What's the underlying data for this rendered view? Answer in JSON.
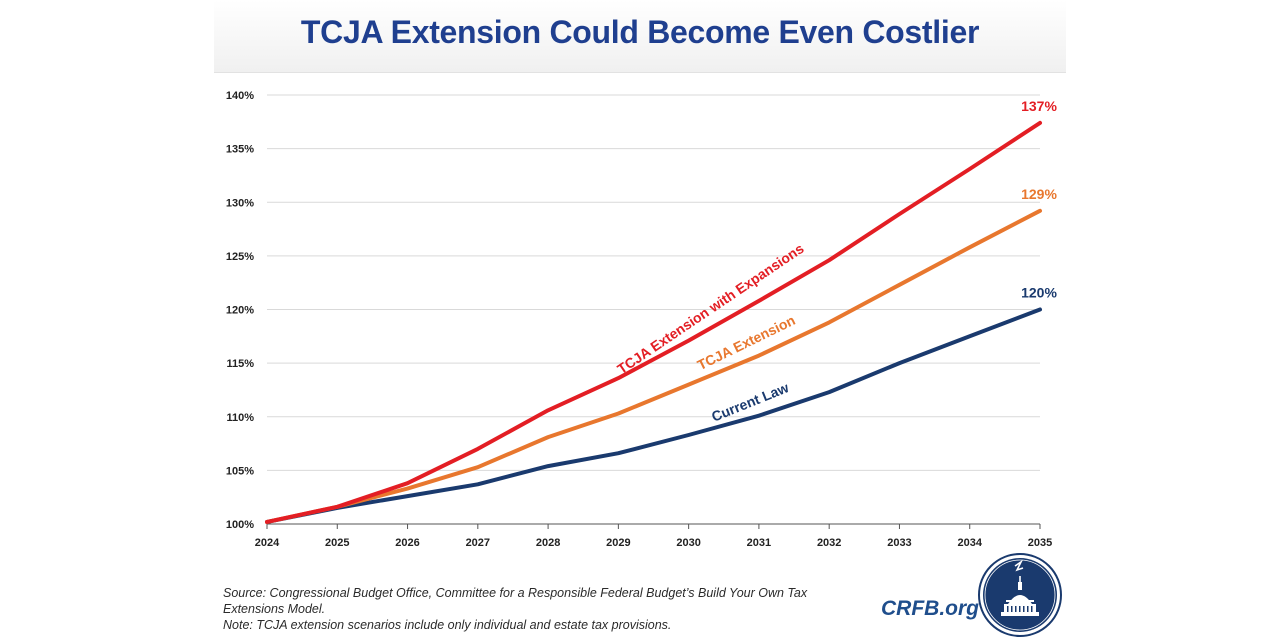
{
  "chart_data": {
    "type": "line",
    "title": "TCJA Extension Could Become Even Costlier",
    "xlabel": "",
    "ylabel": "",
    "x": [
      2024,
      2025,
      2026,
      2027,
      2028,
      2029,
      2030,
      2031,
      2032,
      2033,
      2034,
      2035
    ],
    "x_tick_labels": [
      "2024",
      "2025",
      "2026",
      "2027",
      "2028",
      "2029",
      "2030",
      "2031",
      "2032",
      "2033",
      "2034",
      "2035"
    ],
    "ylim": [
      100,
      140
    ],
    "y_ticks": [
      100,
      105,
      110,
      115,
      120,
      125,
      130,
      135,
      140
    ],
    "y_tick_labels": [
      "100%",
      "105%",
      "110%",
      "115%",
      "120%",
      "125%",
      "130%",
      "135%",
      "140%"
    ],
    "grid": true,
    "series": [
      {
        "name": "Current Law",
        "color": "#1a3a6e",
        "values": [
          100.2,
          101.5,
          102.6,
          103.7,
          105.4,
          106.6,
          108.3,
          110.1,
          112.3,
          115.0,
          117.5,
          120.0
        ],
        "end_label": "120%"
      },
      {
        "name": "TCJA Extension",
        "color": "#e8772e",
        "values": [
          100.2,
          101.6,
          103.3,
          105.3,
          108.1,
          110.3,
          113.0,
          115.7,
          118.8,
          122.3,
          125.8,
          129.2
        ],
        "end_label": "129%"
      },
      {
        "name": "TCJA Extension with Expansions",
        "color": "#e31e24",
        "values": [
          100.2,
          101.6,
          103.8,
          107.0,
          110.6,
          113.6,
          117.1,
          120.8,
          124.6,
          128.9,
          133.1,
          137.4
        ],
        "end_label": "137%"
      }
    ]
  },
  "footnote": {
    "source_line1": "Source: Congressional Budget Office, Committee for a Responsible Federal Budget’s Build Your Own Tax",
    "source_line2": "Extensions Model.",
    "note": "Note: TCJA extension scenarios include only individual and estate tax provisions."
  },
  "brand": {
    "text": "CRFB.org",
    "color": "#1f4e8c"
  }
}
